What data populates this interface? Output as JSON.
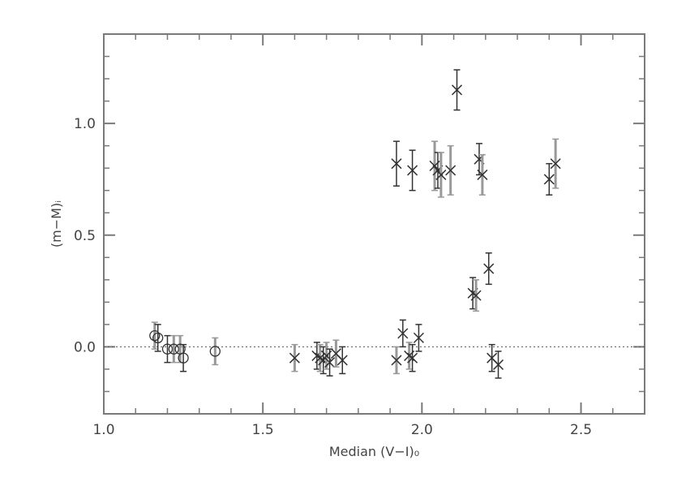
{
  "chart_data": {
    "type": "scatter",
    "xlabel": "Median (V−I)₀",
    "ylabel": "(m−M)ᵢ",
    "xlim": [
      1.0,
      2.7
    ],
    "ylim": [
      -0.3,
      1.4
    ],
    "xticks": [
      "1.0",
      "1.5",
      "2.0",
      "2.5"
    ],
    "yticks": [
      "0.0",
      "0.5",
      "1.0"
    ],
    "xtick_values": [
      1.0,
      1.5,
      2.0,
      2.5
    ],
    "ytick_values": [
      0.0,
      0.5,
      1.0
    ],
    "reference_line_y": 0.0,
    "grid": false,
    "colors": {
      "axis": "#7a7a7a",
      "marker": "#333333",
      "errorbar_dark": "#333333",
      "errorbar_light": "#999999",
      "refline": "#555555"
    },
    "series": [
      {
        "marker": "circle",
        "points": [
          {
            "x": 1.16,
            "y": 0.05,
            "err": 0.06,
            "light": true
          },
          {
            "x": 1.17,
            "y": 0.04,
            "err": 0.06,
            "light": false
          },
          {
            "x": 1.2,
            "y": -0.01,
            "err": 0.06,
            "light": false
          },
          {
            "x": 1.22,
            "y": -0.01,
            "err": 0.06,
            "light": true
          },
          {
            "x": 1.24,
            "y": -0.01,
            "err": 0.06,
            "light": true
          },
          {
            "x": 1.25,
            "y": -0.05,
            "err": 0.06,
            "light": false
          },
          {
            "x": 1.35,
            "y": -0.02,
            "err": 0.06,
            "light": true
          }
        ]
      },
      {
        "marker": "cross",
        "points": [
          {
            "x": 1.6,
            "y": -0.05,
            "err": 0.06,
            "light": true
          },
          {
            "x": 1.67,
            "y": -0.04,
            "err": 0.06,
            "light": false
          },
          {
            "x": 1.68,
            "y": -0.05,
            "err": 0.06,
            "light": true
          },
          {
            "x": 1.69,
            "y": -0.06,
            "err": 0.06,
            "light": false
          },
          {
            "x": 1.7,
            "y": -0.04,
            "err": 0.06,
            "light": true
          },
          {
            "x": 1.71,
            "y": -0.07,
            "err": 0.06,
            "light": false
          },
          {
            "x": 1.73,
            "y": -0.03,
            "err": 0.06,
            "light": true
          },
          {
            "x": 1.75,
            "y": -0.06,
            "err": 0.06,
            "light": false
          },
          {
            "x": 1.92,
            "y": 0.82,
            "err": 0.1,
            "light": false
          },
          {
            "x": 1.97,
            "y": 0.79,
            "err": 0.09,
            "light": false
          },
          {
            "x": 2.04,
            "y": 0.81,
            "err": 0.11,
            "light": true
          },
          {
            "x": 2.05,
            "y": 0.79,
            "err": 0.08,
            "light": false
          },
          {
            "x": 2.06,
            "y": 0.77,
            "err": 0.1,
            "light": true
          },
          {
            "x": 2.09,
            "y": 0.79,
            "err": 0.11,
            "light": true
          },
          {
            "x": 2.11,
            "y": 1.15,
            "err": 0.09,
            "light": false
          },
          {
            "x": 2.18,
            "y": 0.84,
            "err": 0.07,
            "light": false
          },
          {
            "x": 2.19,
            "y": 0.77,
            "err": 0.09,
            "light": true
          },
          {
            "x": 2.4,
            "y": 0.75,
            "err": 0.07,
            "light": false
          },
          {
            "x": 2.42,
            "y": 0.82,
            "err": 0.11,
            "light": true
          },
          {
            "x": 2.16,
            "y": 0.24,
            "err": 0.07,
            "light": false
          },
          {
            "x": 2.17,
            "y": 0.23,
            "err": 0.07,
            "light": true
          },
          {
            "x": 2.21,
            "y": 0.35,
            "err": 0.07,
            "light": false
          },
          {
            "x": 1.92,
            "y": -0.06,
            "err": 0.06,
            "light": true
          },
          {
            "x": 1.94,
            "y": 0.06,
            "err": 0.06,
            "light": false
          },
          {
            "x": 1.96,
            "y": -0.04,
            "err": 0.06,
            "light": true
          },
          {
            "x": 1.97,
            "y": -0.05,
            "err": 0.06,
            "light": false
          },
          {
            "x": 1.99,
            "y": 0.04,
            "err": 0.06,
            "light": false
          },
          {
            "x": 2.22,
            "y": -0.05,
            "err": 0.06,
            "light": false
          },
          {
            "x": 2.24,
            "y": -0.08,
            "err": 0.06,
            "light": false
          }
        ]
      }
    ]
  }
}
